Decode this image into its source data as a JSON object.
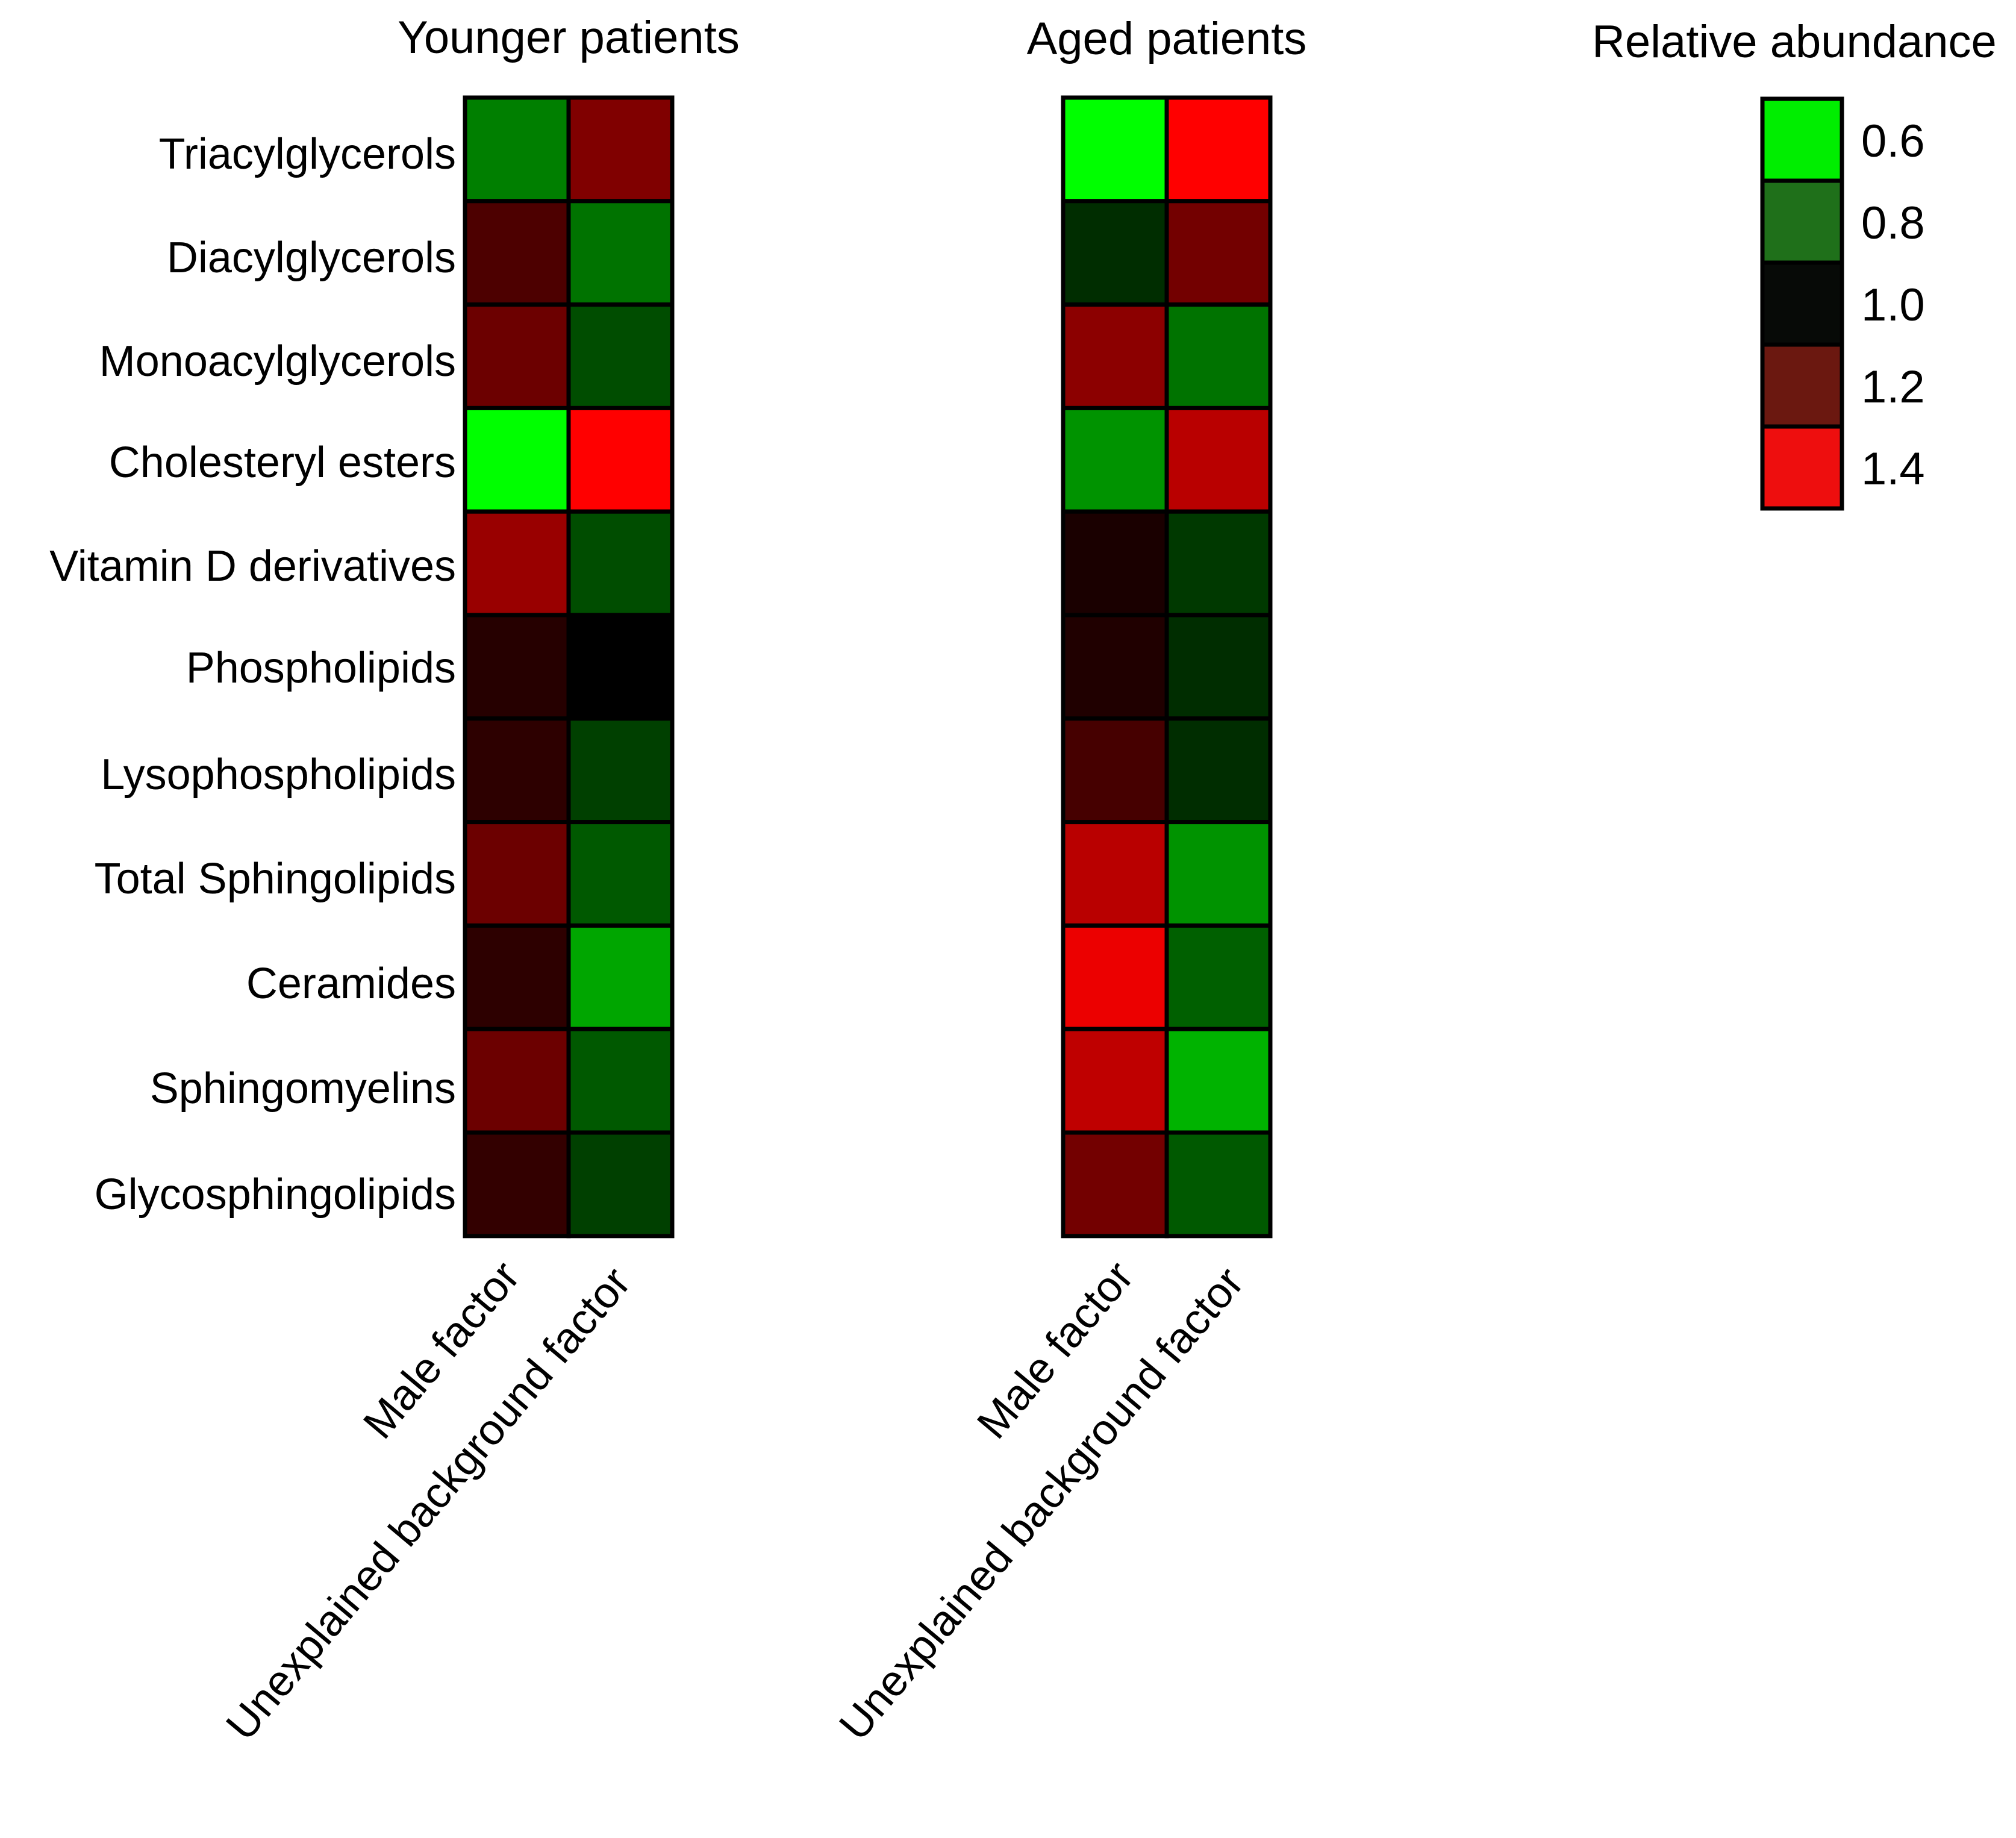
{
  "chart_data": {
    "type": "heatmap",
    "value_label": "Relative abundance",
    "rows": [
      "Triacylglycerols",
      "Diacylglycerols",
      "Monoacylglycerols",
      "Cholesteryl esters",
      "Vitamin D derivatives",
      "Phospholipids",
      "Lysophospholipids",
      "Total Sphingolipids",
      "Ceramides",
      "Sphingomyelins",
      "Glycosphingolipids"
    ],
    "columns": [
      "Male factor",
      "Unexplained background factor"
    ],
    "panels": [
      {
        "title": "Younger patients",
        "values": [
          [
            0.8,
            1.2
          ],
          [
            1.12,
            0.82
          ],
          [
            1.17,
            0.88
          ],
          [
            0.6,
            1.4
          ],
          [
            1.24,
            0.88
          ],
          [
            1.06,
            1.0
          ],
          [
            1.07,
            0.9
          ],
          [
            1.17,
            0.86
          ],
          [
            1.07,
            0.74
          ],
          [
            1.17,
            0.86
          ],
          [
            1.08,
            0.9
          ]
        ]
      },
      {
        "title": "Aged patients",
        "values": [
          [
            0.6,
            1.4
          ],
          [
            0.93,
            1.18
          ],
          [
            1.22,
            0.82
          ],
          [
            0.77,
            1.29
          ],
          [
            1.04,
            0.91
          ],
          [
            1.05,
            0.93
          ],
          [
            1.11,
            0.93
          ],
          [
            1.29,
            0.77
          ],
          [
            1.37,
            0.85
          ],
          [
            1.3,
            0.72
          ],
          [
            1.18,
            0.86
          ]
        ]
      }
    ],
    "colorbar": {
      "title": "Relative abundance",
      "ticks": [
        0.6,
        0.8,
        1.0,
        1.2,
        1.4
      ],
      "tick_labels": [
        "0.6",
        "0.8",
        "1.0",
        "1.2",
        "1.4"
      ],
      "colors": [
        "#00ee00",
        "#1f701a",
        "#070a07",
        "#6b1810",
        "#ee0e0e"
      ]
    },
    "color_scale": {
      "low_color": "#00ff00",
      "mid_color": "#000000",
      "high_color": "#ff0000",
      "min": 0.6,
      "mid": 1.0,
      "max": 1.4
    }
  }
}
